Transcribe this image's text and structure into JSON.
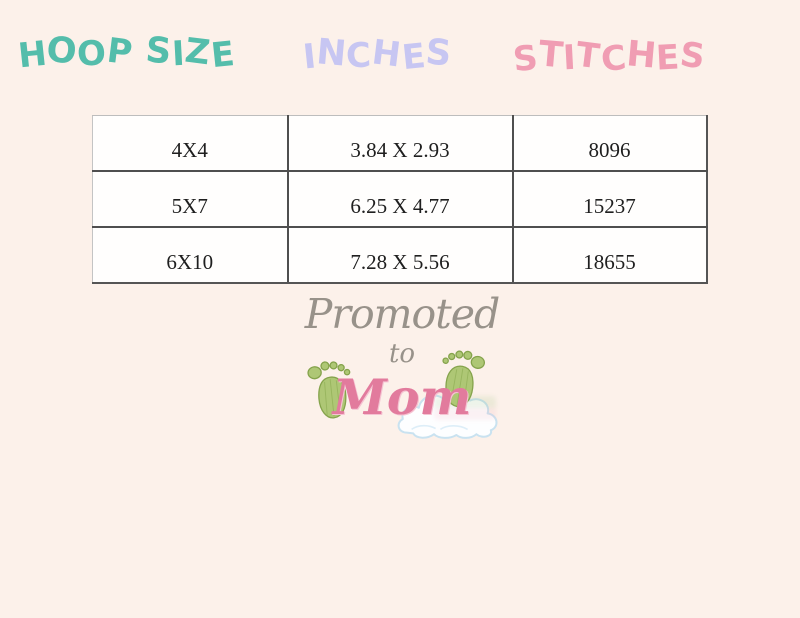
{
  "page": {
    "background_color": "#fcf1ea"
  },
  "headers": {
    "hoop_size": {
      "label": "HOOP SIZE",
      "color": "#54bdab"
    },
    "inches": {
      "label": "INCHES",
      "color": "#c7c6f2"
    },
    "stitches": {
      "label": "STITCHES",
      "color": "#f09db3"
    }
  },
  "table": {
    "rows": [
      {
        "hoop_size": "4X4",
        "inches": "3.84 X 2.93",
        "stitches": "8096"
      },
      {
        "hoop_size": "5X7",
        "inches": "6.25 X 4.77",
        "stitches": "15237"
      },
      {
        "hoop_size": "6X10",
        "inches": "7.28 X 5.56",
        "stitches": "18655"
      }
    ]
  },
  "logo": {
    "line1": "Promoted",
    "line2": "to",
    "line3": "Mom",
    "colors": {
      "script_gray": "#98928a",
      "mom_pink": "#e27b9d",
      "footprint_green": "#aec775",
      "footprint_stroke": "#85a34c",
      "cloud_outline": "#c9e2f0"
    }
  },
  "chart_data": {
    "type": "table",
    "columns": [
      "HOOP SIZE",
      "INCHES",
      "STITCHES"
    ],
    "rows": [
      [
        "4X4",
        "3.84 X 2.93",
        "8096"
      ],
      [
        "5X7",
        "6.25 X 4.77",
        "15237"
      ],
      [
        "6X10",
        "7.28 X 5.56",
        "18655"
      ]
    ]
  }
}
